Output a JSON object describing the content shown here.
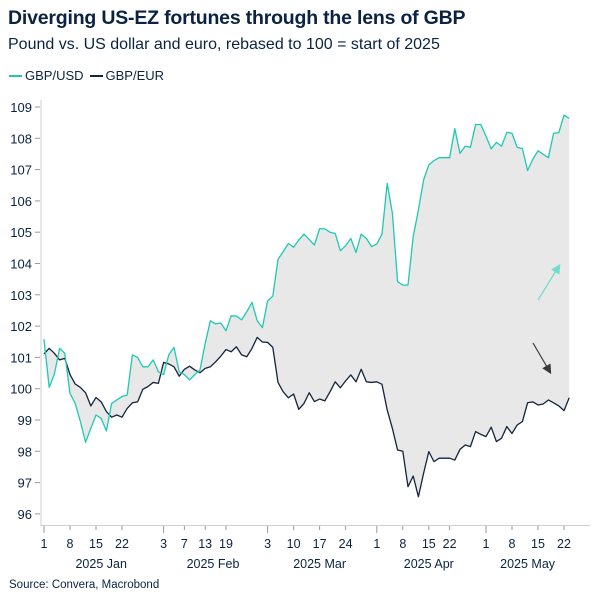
{
  "title": "Diverging US-EZ fortunes through the lens of GBP",
  "subtitle": "Pound vs. US dollar and euro, rebased to 100 = start of 2025",
  "source": "Source: Convera, Macrobond",
  "colors": {
    "usd": "#1ec9b4",
    "eur": "#14243c",
    "band": "#e8e8e8",
    "axis": "#cfcfcf",
    "arrow_up": "#6fdccd",
    "arrow_down": "#3a3a3a"
  },
  "chart_data": {
    "type": "line",
    "title": "Diverging US-EZ fortunes through the lens of GBP",
    "subtitle": "Pound vs. US dollar and euro, rebased to 100 = start of 2025",
    "xlabel": "",
    "ylabel": "",
    "ylim": [
      96,
      109
    ],
    "yticks": [
      "96",
      "97",
      "98",
      "99",
      "100",
      "101",
      "102",
      "103",
      "104",
      "105",
      "106",
      "107",
      "108",
      "109"
    ],
    "grid": false,
    "legend_position": "top-left",
    "fill_between_series": true,
    "x": [
      "2025-01-01",
      "2025-01-02",
      "2025-01-03",
      "2025-01-06",
      "2025-01-07",
      "2025-01-08",
      "2025-01-09",
      "2025-01-10",
      "2025-01-13",
      "2025-01-14",
      "2025-01-15",
      "2025-01-16",
      "2025-01-17",
      "2025-01-20",
      "2025-01-21",
      "2025-01-22",
      "2025-01-23",
      "2025-01-24",
      "2025-01-27",
      "2025-01-28",
      "2025-01-29",
      "2025-01-30",
      "2025-01-31",
      "2025-02-03",
      "2025-02-04",
      "2025-02-05",
      "2025-02-06",
      "2025-02-07",
      "2025-02-10",
      "2025-02-11",
      "2025-02-12",
      "2025-02-13",
      "2025-02-14",
      "2025-02-17",
      "2025-02-18",
      "2025-02-19",
      "2025-02-20",
      "2025-02-21",
      "2025-02-24",
      "2025-02-25",
      "2025-02-26",
      "2025-02-27",
      "2025-02-28",
      "2025-03-03",
      "2025-03-04",
      "2025-03-05",
      "2025-03-06",
      "2025-03-07",
      "2025-03-10",
      "2025-03-11",
      "2025-03-12",
      "2025-03-13",
      "2025-03-14",
      "2025-03-17",
      "2025-03-18",
      "2025-03-19",
      "2025-03-20",
      "2025-03-21",
      "2025-03-24",
      "2025-03-25",
      "2025-03-26",
      "2025-03-27",
      "2025-03-28",
      "2025-03-31",
      "2025-04-01",
      "2025-04-02",
      "2025-04-03",
      "2025-04-04",
      "2025-04-07",
      "2025-04-08",
      "2025-04-09",
      "2025-04-10",
      "2025-04-11",
      "2025-04-14",
      "2025-04-15",
      "2025-04-16",
      "2025-04-17",
      "2025-04-21",
      "2025-04-22",
      "2025-04-23",
      "2025-04-24",
      "2025-04-25",
      "2025-04-28",
      "2025-04-29",
      "2025-04-30",
      "2025-05-01",
      "2025-05-02",
      "2025-05-05",
      "2025-05-06",
      "2025-05-07",
      "2025-05-08",
      "2025-05-09",
      "2025-05-12",
      "2025-05-13",
      "2025-05-14",
      "2025-05-15",
      "2025-05-16",
      "2025-05-19",
      "2025-05-20",
      "2025-05-21",
      "2025-05-22",
      "2025-05-23"
    ],
    "series": [
      {
        "name": "GBP/USD",
        "values": [
          101.58,
          100.04,
          100.47,
          101.29,
          101.13,
          99.85,
          99.53,
          98.95,
          98.29,
          98.73,
          99.16,
          99.05,
          98.65,
          99.53,
          99.64,
          99.75,
          99.8,
          101.08,
          101.0,
          100.7,
          100.7,
          100.92,
          100.54,
          100.45,
          101.08,
          101.32,
          100.54,
          100.45,
          100.28,
          100.45,
          100.6,
          101.45,
          102.17,
          102.07,
          102.1,
          101.85,
          102.33,
          102.32,
          102.2,
          102.46,
          102.76,
          102.17,
          101.95,
          102.8,
          102.96,
          104.13,
          104.38,
          104.64,
          104.52,
          104.75,
          104.94,
          104.77,
          104.59,
          105.11,
          105.11,
          105.0,
          104.96,
          104.41,
          104.57,
          104.8,
          104.35,
          104.94,
          104.8,
          104.54,
          104.62,
          104.94,
          106.56,
          105.6,
          103.42,
          103.31,
          103.31,
          104.86,
          105.71,
          106.67,
          107.15,
          107.29,
          107.38,
          107.38,
          107.38,
          108.31,
          107.52,
          107.75,
          107.71,
          108.44,
          108.44,
          108.07,
          107.66,
          107.87,
          107.75,
          108.19,
          108.16,
          107.71,
          107.67,
          106.97,
          107.33,
          107.6,
          107.49,
          107.38,
          108.16,
          108.18,
          108.74,
          108.64
        ]
      },
      {
        "name": "GBP/EUR",
        "values": [
          101.11,
          101.29,
          101.13,
          100.92,
          100.97,
          100.45,
          100.15,
          100.04,
          99.87,
          99.45,
          99.72,
          99.58,
          99.27,
          99.09,
          99.16,
          99.09,
          99.37,
          99.55,
          99.58,
          99.98,
          100.07,
          100.2,
          100.17,
          100.84,
          100.79,
          100.7,
          100.4,
          100.62,
          100.72,
          100.6,
          100.51,
          100.65,
          100.7,
          100.86,
          101.04,
          101.25,
          101.18,
          101.34,
          101.08,
          101.02,
          101.29,
          101.64,
          101.49,
          101.48,
          101.32,
          100.2,
          99.9,
          99.71,
          99.83,
          99.34,
          99.53,
          99.87,
          99.59,
          99.67,
          99.61,
          99.9,
          100.22,
          100.03,
          100.25,
          100.44,
          100.22,
          100.62,
          100.22,
          100.2,
          100.22,
          100.14,
          99.32,
          98.73,
          98.04,
          98.0,
          96.87,
          97.21,
          96.55,
          97.3,
          97.99,
          97.67,
          97.78,
          97.78,
          97.78,
          97.72,
          98.06,
          98.2,
          98.15,
          98.63,
          98.54,
          98.47,
          98.77,
          98.31,
          98.42,
          98.79,
          98.57,
          98.84,
          98.95,
          99.55,
          99.58,
          99.48,
          99.51,
          99.64,
          99.55,
          99.45,
          99.3,
          99.71
        ]
      }
    ],
    "xticks": [
      {
        "date": "2025-01-01",
        "label": "1",
        "month_start": true
      },
      {
        "date": "2025-01-08",
        "label": "8"
      },
      {
        "date": "2025-01-15",
        "label": "15"
      },
      {
        "date": "2025-01-22",
        "label": "22"
      },
      {
        "date": "2025-02-03",
        "label": "3",
        "month_start": true
      },
      {
        "date": "2025-02-07",
        "label": "7"
      },
      {
        "date": "2025-02-13",
        "label": "13"
      },
      {
        "date": "2025-02-19",
        "label": "19"
      },
      {
        "date": "2025-03-03",
        "label": "3",
        "month_start": true
      },
      {
        "date": "2025-03-10",
        "label": "10"
      },
      {
        "date": "2025-03-17",
        "label": "17"
      },
      {
        "date": "2025-03-24",
        "label": "24"
      },
      {
        "date": "2025-04-01",
        "label": "1",
        "month_start": true
      },
      {
        "date": "2025-04-08",
        "label": "8"
      },
      {
        "date": "2025-04-15",
        "label": "15"
      },
      {
        "date": "2025-04-22",
        "label": "22"
      },
      {
        "date": "2025-05-01",
        "label": "1",
        "month_start": true
      },
      {
        "date": "2025-05-08",
        "label": "8"
      },
      {
        "date": "2025-05-15",
        "label": "15"
      },
      {
        "date": "2025-05-22",
        "label": "22"
      }
    ],
    "month_labels": [
      {
        "month": "2025-01",
        "label": "2025 Jan"
      },
      {
        "month": "2025-02",
        "label": "2025 Feb"
      },
      {
        "month": "2025-03",
        "label": "2025 Mar"
      },
      {
        "month": "2025-04",
        "label": "2025 Apr"
      },
      {
        "month": "2025-05",
        "label": "2025 May"
      }
    ]
  }
}
